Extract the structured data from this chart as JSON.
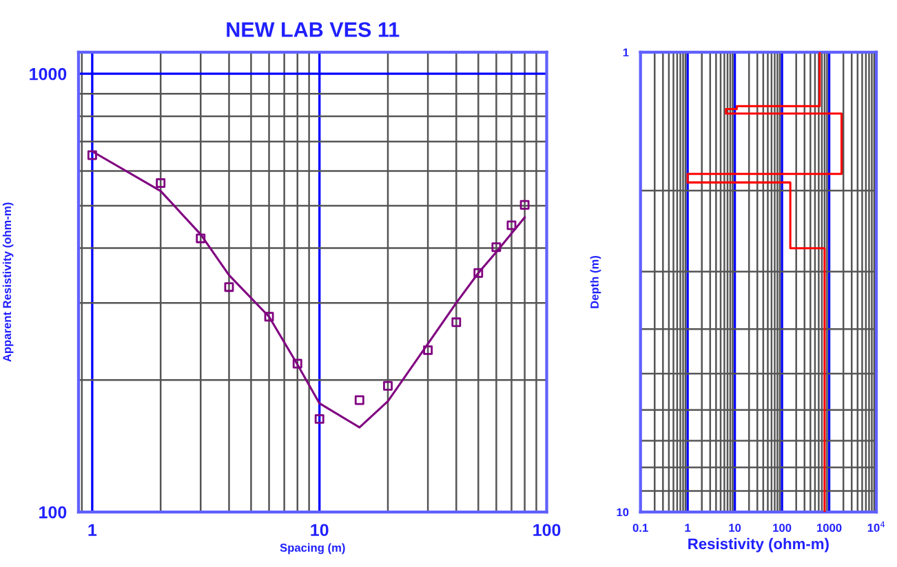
{
  "chart_data": [
    {
      "type": "scatter",
      "title": "NEW LAB VES 11",
      "xlabel": "Spacing (m)",
      "ylabel": "Apparent Resistivity (ohm-m)",
      "log": "xy",
      "grid": true,
      "xlim": [
        0.87,
        100
      ],
      "ylim": [
        100,
        1120
      ],
      "xticks": [
        1,
        10,
        100
      ],
      "yticks": [
        100,
        1000
      ],
      "series": [
        {
          "marker": "square",
          "color": "#800080",
          "x": [
            1,
            2,
            3,
            4,
            6,
            8,
            10,
            15,
            20,
            30,
            40,
            50,
            60,
            70,
            80
          ],
          "values": [
            652,
            563,
            421,
            326,
            279,
            218,
            163,
            180,
            194,
            234,
            271,
            351,
            402,
            451,
            502
          ]
        },
        {
          "type": "line",
          "marker": "none",
          "color": "#800080",
          "x": [
            1,
            2,
            3,
            4,
            6,
            8,
            10,
            15,
            20,
            30,
            40,
            50,
            60,
            70,
            80
          ],
          "values": [
            665,
            540,
            430,
            347,
            279,
            217,
            177,
            156,
            179,
            242,
            300,
            351,
            392,
            432,
            470
          ]
        }
      ]
    },
    {
      "type": "line",
      "xlabel": "Resistivity (ohm-m)",
      "ylabel": "Depth (m)",
      "log": "xy",
      "grid": true,
      "xlim": [
        0.1,
        10000
      ],
      "ylim": [
        10,
        1
      ],
      "xticks": [
        0.1,
        1,
        10,
        100,
        1000,
        {
          "value": 10000,
          "label": "10$^{4}$"
        }
      ],
      "yticks": [
        1,
        10
      ],
      "series": [
        {
          "marker": "none",
          "color": "#ff0000",
          "x": [
            630,
            630,
            11,
            11,
            6.5,
            6.5,
            1830,
            1830,
            1,
            1,
            150,
            150,
            800,
            800
          ],
          "values": [
            1,
            1.31,
            1.31,
            1.33,
            1.33,
            1.36,
            1.36,
            1.84,
            1.84,
            1.92,
            1.92,
            2.67,
            2.67,
            10
          ]
        }
      ]
    }
  ]
}
